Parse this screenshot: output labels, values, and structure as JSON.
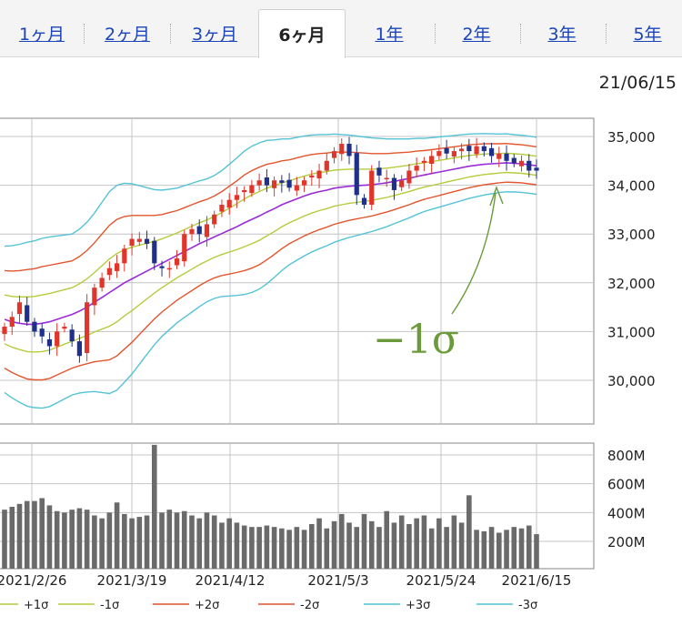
{
  "tabs": [
    {
      "label": "1ヶ月",
      "active": false
    },
    {
      "label": "2ヶ月",
      "active": false
    },
    {
      "label": "3ヶ月",
      "active": false
    },
    {
      "label": "6ヶ月",
      "active": true
    },
    {
      "label": "1年",
      "active": false
    },
    {
      "label": "2年",
      "active": false
    },
    {
      "label": "3年",
      "active": false
    },
    {
      "label": "5年",
      "active": false
    }
  ],
  "date_label": "21/06/15",
  "annotation": {
    "label": "−1σ",
    "color": "#6b9a3a"
  },
  "colors": {
    "up": "#e0352b",
    "down": "#1f2f8c",
    "ma": "#9a2bd8",
    "sigma1": "#b5cc3b",
    "sigma2": "#e2552e",
    "sigma3": "#54c3d6",
    "volume": "#6a6a6a",
    "grid": "#c4c4c4"
  },
  "chart_data": [
    {
      "type": "candlestick",
      "title": "",
      "y_ticks": [
        "35,000",
        "34,000",
        "33,000",
        "32,000",
        "31,000",
        "30,000"
      ],
      "ylim": [
        29600,
        35200
      ],
      "x_tick_labels": [
        "2021/2/26",
        "2021/3/19",
        "2021/4/12",
        "2021/5/3",
        "2021/5/24",
        "2021/6/15"
      ],
      "x_range": [
        "2021/2/16",
        "2021/6/15"
      ],
      "legend": [
        {
          "label": "+1σ",
          "band": "sigma1"
        },
        {
          "label": "-1σ",
          "band": "sigma1"
        },
        {
          "label": "+2σ",
          "band": "sigma2"
        },
        {
          "label": "-2σ",
          "band": "sigma2"
        },
        {
          "label": "+3σ",
          "band": "sigma3"
        },
        {
          "label": "-3σ",
          "band": "sigma3"
        }
      ],
      "close": [
        31100,
        31300,
        31600,
        31200,
        31000,
        30900,
        30700,
        31000,
        31100,
        30800,
        30500,
        31600,
        31900,
        32100,
        32300,
        32400,
        32700,
        32900,
        32900,
        32800,
        32400,
        32300,
        32300,
        32500,
        33000,
        33100,
        33000,
        33200,
        33400,
        33600,
        33700,
        33800,
        33900,
        34000,
        34100,
        34000,
        34100,
        34050,
        33950,
        34000,
        34100,
        34200,
        34300,
        34500,
        34700,
        34850,
        34600,
        33800,
        33600,
        34300,
        34200,
        34150,
        33900,
        34100,
        34300,
        34400,
        34500,
        34600,
        34700,
        34650,
        34700,
        34750,
        34700,
        34800,
        34700,
        34600,
        34650,
        34500,
        34450,
        34500,
        34300,
        34300
      ],
      "ma": [
        31250,
        31200,
        31170,
        31150,
        31150,
        31170,
        31200,
        31250,
        31300,
        31350,
        31420,
        31500,
        31600,
        31700,
        31800,
        31900,
        32000,
        32080,
        32160,
        32240,
        32320,
        32400,
        32480,
        32560,
        32640,
        32720,
        32800,
        32870,
        32940,
        33010,
        33080,
        33150,
        33230,
        33300,
        33370,
        33450,
        33520,
        33600,
        33660,
        33720,
        33780,
        33830,
        33870,
        33900,
        33940,
        33960,
        33980,
        33990,
        34000,
        34010,
        34030,
        34050,
        34080,
        34110,
        34140,
        34180,
        34210,
        34240,
        34270,
        34300,
        34330,
        34360,
        34390,
        34410,
        34430,
        34440,
        34450,
        34460,
        34450,
        34440,
        34420,
        34400
      ],
      "band_width_sigma1": [
        500,
        520,
        540,
        560,
        570,
        580,
        580,
        570,
        560,
        550,
        560,
        580,
        610,
        650,
        690,
        700,
        680,
        650,
        610,
        570,
        530,
        500,
        480,
        460,
        450,
        440,
        430,
        420,
        420,
        430,
        450,
        470,
        490,
        500,
        500,
        490,
        470,
        450,
        430,
        420,
        410,
        400,
        390,
        380,
        370,
        360,
        350,
        340,
        330,
        320,
        310,
        300,
        290,
        280,
        270,
        260,
        250,
        245,
        240,
        235,
        230,
        225,
        220,
        215,
        210,
        205,
        200,
        198,
        196,
        195,
        195,
        195
      ],
      "volume_axis_ticks": [
        "800M",
        "600M",
        "400M",
        "200M"
      ],
      "volume": [
        420,
        440,
        460,
        480,
        480,
        500,
        450,
        410,
        400,
        420,
        430,
        420,
        380,
        360,
        400,
        470,
        390,
        360,
        370,
        380,
        870,
        400,
        420,
        400,
        410,
        380,
        360,
        400,
        380,
        330,
        360,
        330,
        310,
        300,
        300,
        310,
        300,
        290,
        280,
        300,
        280,
        320,
        360,
        290,
        340,
        390,
        330,
        300,
        390,
        340,
        300,
        410,
        330,
        380,
        320,
        360,
        380,
        290,
        360,
        300,
        380,
        330,
        520,
        280,
        270,
        300,
        260,
        280,
        300,
        290,
        310,
        250
      ]
    }
  ]
}
